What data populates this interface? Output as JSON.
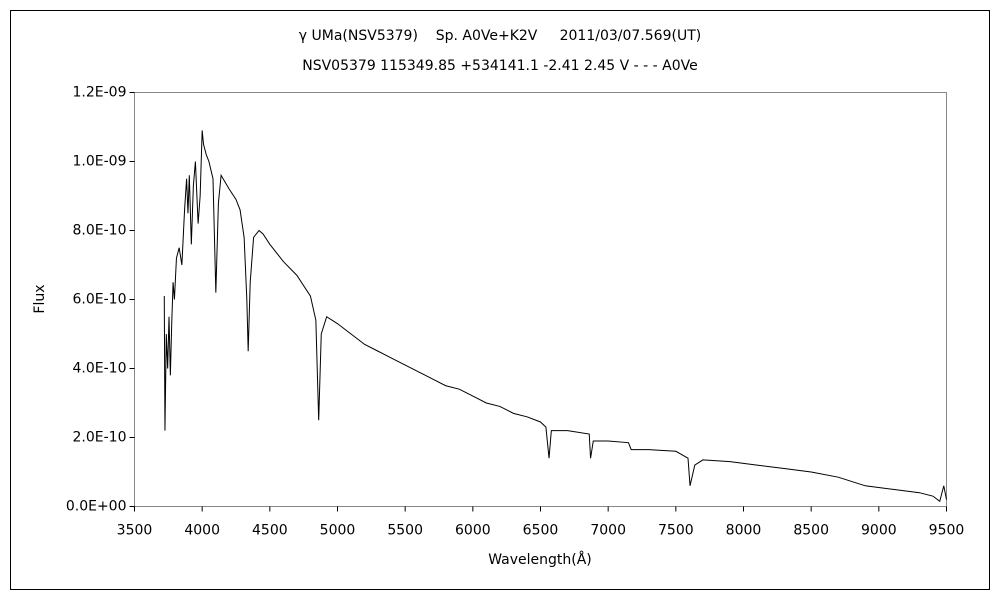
{
  "chart_data": {
    "type": "line",
    "title": "γ UMa(NSV5379)    Sp. A0Ve+K2V     2011/03/07.569(UT)",
    "subtitle": "NSV05379 115349.85 +534141.1 -2.41 2.45 V - - - A0Ve",
    "x_label": "Wavelength(Å)",
    "y_label": "Flux",
    "xlim": [
      3500,
      9500
    ],
    "xticks": [
      3500,
      4000,
      4500,
      5000,
      5500,
      6000,
      6500,
      7000,
      7500,
      8000,
      8500,
      9000,
      9500
    ],
    "ylim": [
      0,
      1.2e-09
    ],
    "yticks": [
      {
        "value": 0,
        "label": "0.0E+00"
      },
      {
        "value": 2e-10,
        "label": "2.0E-10"
      },
      {
        "value": 4e-10,
        "label": "4.0E-10"
      },
      {
        "value": 6e-10,
        "label": "6.0E-10"
      },
      {
        "value": 8e-10,
        "label": "8.0E-10"
      },
      {
        "value": 1e-09,
        "label": "1.0E-09"
      },
      {
        "value": 1.2e-09,
        "label": "1.2E-09"
      }
    ],
    "grid": false,
    "series": [
      {
        "color": "#000000",
        "x": [
          3720,
          3725,
          3735,
          3745,
          3755,
          3765,
          3775,
          3785,
          3795,
          3810,
          3830,
          3850,
          3870,
          3885,
          3895,
          3905,
          3920,
          3935,
          3950,
          3970,
          3985,
          4000,
          4010,
          4030,
          4050,
          4080,
          4101,
          4120,
          4140,
          4170,
          4200,
          4250,
          4280,
          4310,
          4330,
          4340,
          4355,
          4380,
          4420,
          4450,
          4500,
          4600,
          4700,
          4800,
          4840,
          4861,
          4880,
          4920,
          5000,
          5100,
          5200,
          5300,
          5400,
          5500,
          5600,
          5700,
          5800,
          5900,
          6000,
          6100,
          6200,
          6300,
          6400,
          6500,
          6540,
          6563,
          6580,
          6700,
          6860,
          6870,
          6890,
          7000,
          7150,
          7170,
          7300,
          7500,
          7590,
          7605,
          7640,
          7700,
          7900,
          8100,
          8300,
          8500,
          8700,
          8900,
          9100,
          9300,
          9400,
          9450,
          9480,
          9500
        ],
        "values": [
          6.1e-10,
          2.2e-10,
          5e-10,
          4e-10,
          5.5e-10,
          3.8e-10,
          5.3e-10,
          6.5e-10,
          6e-10,
          7.2e-10,
          7.5e-10,
          7e-10,
          8.6e-10,
          9.5e-10,
          8.5e-10,
          9.6e-10,
          7.6e-10,
          9.3e-10,
          1e-09,
          8.2e-10,
          9e-10,
          1.09e-09,
          1.05e-09,
          1.02e-09,
          1e-09,
          9.5e-10,
          6.2e-10,
          8.8e-10,
          9.6e-10,
          9.4e-10,
          9.2e-10,
          8.9e-10,
          8.6e-10,
          7.8e-10,
          6e-10,
          4.5e-10,
          6.5e-10,
          7.8e-10,
          8e-10,
          7.9e-10,
          7.6e-10,
          7.1e-10,
          6.7e-10,
          6.1e-10,
          5.4e-10,
          2.5e-10,
          5e-10,
          5.5e-10,
          5.3e-10,
          5e-10,
          4.7e-10,
          4.5e-10,
          4.3e-10,
          4.1e-10,
          3.9e-10,
          3.7e-10,
          3.5e-10,
          3.4e-10,
          3.2e-10,
          3e-10,
          2.9e-10,
          2.7e-10,
          2.6e-10,
          2.45e-10,
          2.3e-10,
          1.4e-10,
          2.2e-10,
          2.2e-10,
          2.1e-10,
          1.4e-10,
          1.9e-10,
          1.9e-10,
          1.85e-10,
          1.65e-10,
          1.65e-10,
          1.6e-10,
          1.4e-10,
          6e-11,
          1.2e-10,
          1.35e-10,
          1.3e-10,
          1.2e-10,
          1.1e-10,
          1e-10,
          8.5e-11,
          6e-11,
          5e-11,
          4e-11,
          3e-11,
          1.5e-11,
          6e-11,
          2e-11
        ]
      }
    ]
  }
}
